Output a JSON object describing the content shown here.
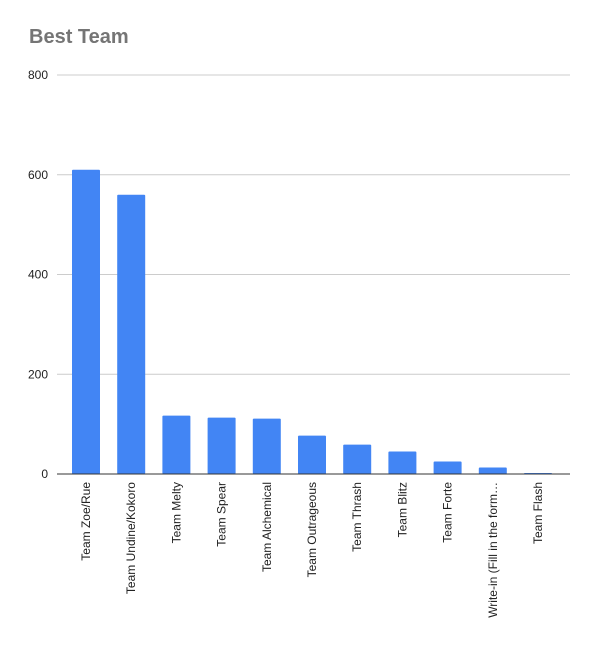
{
  "chart_data": {
    "type": "bar",
    "title": "Best Team",
    "xlabel": "",
    "ylabel": "",
    "ylim": [
      0,
      800
    ],
    "yticks": [
      0,
      200,
      400,
      600,
      800
    ],
    "grid": true,
    "bar_color": "#4285F4",
    "categories": [
      "Team Zoe/Rue",
      "Team Undine/Kokoro",
      "Team Melty",
      "Team Spear",
      "Team Alchemical",
      "Team Outrageous",
      "Team Thrash",
      "Team Blitz",
      "Team Forte",
      "Write-in (Fill in the form…",
      "Team Flash"
    ],
    "values": [
      610,
      560,
      117,
      113,
      111,
      77,
      59,
      45,
      25,
      13,
      2
    ]
  }
}
